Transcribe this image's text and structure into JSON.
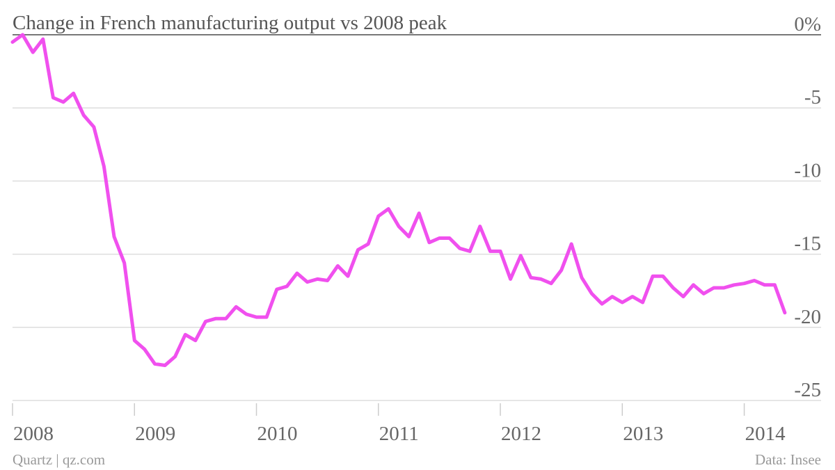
{
  "chart_data": {
    "type": "line",
    "title": "Change in French manufacturing output vs 2008 peak",
    "source": "Data: Insee",
    "credit": "Quartz | qz.com",
    "x": [
      2008,
      2008.083,
      2008.167,
      2008.25,
      2008.333,
      2008.417,
      2008.5,
      2008.583,
      2008.667,
      2008.75,
      2008.833,
      2008.917,
      2009,
      2009.083,
      2009.167,
      2009.25,
      2009.333,
      2009.417,
      2009.5,
      2009.583,
      2009.667,
      2009.75,
      2009.833,
      2009.917,
      2010,
      2010.083,
      2010.167,
      2010.25,
      2010.333,
      2010.417,
      2010.5,
      2010.583,
      2010.667,
      2010.75,
      2010.833,
      2010.917,
      2011,
      2011.083,
      2011.167,
      2011.25,
      2011.333,
      2011.417,
      2011.5,
      2011.583,
      2011.667,
      2011.75,
      2011.833,
      2011.917,
      2012,
      2012.083,
      2012.167,
      2012.25,
      2012.333,
      2012.417,
      2012.5,
      2012.583,
      2012.667,
      2012.75,
      2012.833,
      2012.917,
      2013,
      2013.083,
      2013.167,
      2013.25,
      2013.333,
      2013.417,
      2013.5,
      2013.583,
      2013.667,
      2013.75,
      2013.833,
      2013.917,
      2014,
      2014.083,
      2014.167,
      2014.25,
      2014.333
    ],
    "series": [
      {
        "color": "#f050ee",
        "values": [
          -0.5,
          0,
          -1.2,
          -0.3,
          -4.3,
          -4.6,
          -4.0,
          -5.5,
          -6.3,
          -9.0,
          -13.8,
          -15.6,
          -20.9,
          -21.5,
          -22.5,
          -22.6,
          -22.0,
          -20.5,
          -20.9,
          -19.6,
          -19.4,
          -19.4,
          -18.6,
          -19.1,
          -19.3,
          -19.3,
          -17.4,
          -17.2,
          -16.3,
          -16.9,
          -16.7,
          -16.8,
          -15.8,
          -16.5,
          -14.7,
          -14.3,
          -12.4,
          -11.9,
          -13.1,
          -13.8,
          -12.2,
          -14.2,
          -13.9,
          -13.9,
          -14.6,
          -14.8,
          -13.1,
          -14.8,
          -14.8,
          -16.7,
          -15.1,
          -16.6,
          -16.7,
          -17.0,
          -16.1,
          -14.3,
          -16.6,
          -17.7,
          -18.4,
          -17.9,
          -18.3,
          -17.9,
          -18.3,
          -16.5,
          -16.5,
          -17.3,
          -17.9,
          -17.1,
          -17.7,
          -17.3,
          -17.3,
          -17.1,
          -17.0,
          -16.8,
          -17.1,
          -17.1,
          -19.0
        ]
      }
    ],
    "xlim": [
      2008,
      2014.63
    ],
    "xticks": [
      2008,
      2009,
      2010,
      2011,
      2012,
      2013,
      2014
    ],
    "ylim": [
      -25,
      0
    ],
    "yticks": [
      {
        "value": 0,
        "label": "0%"
      },
      -5,
      -10,
      -15,
      -20,
      -25
    ],
    "grid": true
  }
}
